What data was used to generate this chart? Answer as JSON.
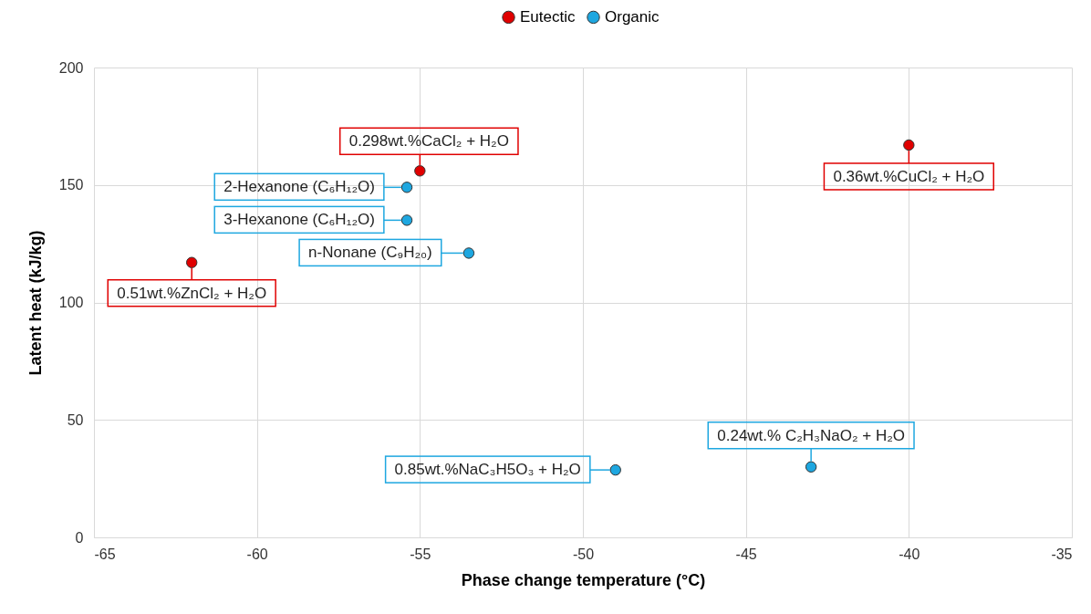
{
  "chart_data": {
    "type": "scatter",
    "xlabel": "Phase change temperature (°C)",
    "ylabel": "Latent heat (kJ/kg)",
    "xlim": [
      -65,
      -35
    ],
    "xticks": [
      -65,
      -60,
      -55,
      -50,
      -45,
      -40,
      -35
    ],
    "ylim": [
      0,
      200
    ],
    "yticks": [
      0,
      50,
      100,
      150,
      200
    ],
    "grid": true,
    "legend": "top",
    "marker": "circle",
    "series": [
      {
        "name": "Eutectic",
        "color": "#e00000",
        "x": [
          -55.0,
          -40.0,
          -62.0
        ],
        "values": [
          156,
          167,
          117
        ]
      },
      {
        "name": "Organic",
        "color": "#1ea7e0",
        "x": [
          -55.4,
          -55.4,
          -53.5,
          -49.0,
          -43.0
        ],
        "values": [
          149,
          135,
          121,
          28.7,
          30
        ]
      }
    ],
    "annotations": [
      {
        "text": "0.298wt.%CaCl₂ + H₂O",
        "x": -55.0,
        "y": 156
      },
      {
        "text": "0.36wt.%CuCl₂ + H₂O",
        "x": -40.0,
        "y": 167
      },
      {
        "text": "0.51wt.%ZnCl₂ + H₂O",
        "x": -62.0,
        "y": 117
      },
      {
        "text": "2-Hexanone (C₆H₁₂O)",
        "x": -55.4,
        "y": 149
      },
      {
        "text": "3-Hexanone (C₆H₁₂O)",
        "x": -55.4,
        "y": 135
      },
      {
        "text": "n-Nonane (C₉H₂₀)",
        "x": -53.5,
        "y": 121
      },
      {
        "text": "0.85wt.%NaC₃H5O₃ + H₂O",
        "x": -49.0,
        "y": 28.7
      },
      {
        "text": "0.24wt.% C₂H₃NaO₂ + H₂O",
        "x": -43.0,
        "y": 30
      }
    ]
  }
}
